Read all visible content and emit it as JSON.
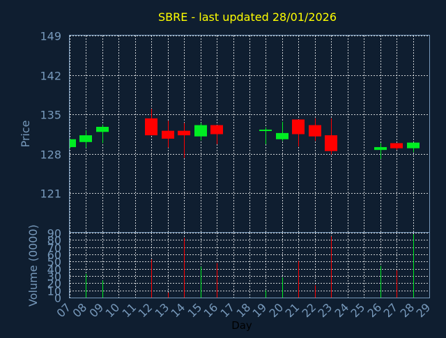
{
  "chart_data": {
    "type": "candlestick",
    "title": "SBRE - last updated 28/01/2026",
    "xlabel": "Day",
    "ylabel": "Price",
    "volume_label": "Volume (0000)",
    "grid": true,
    "price_ticks": [
      "149",
      "142",
      "135",
      "128",
      "121"
    ],
    "volume_ticks": [
      "90",
      "80",
      "70",
      "60",
      "50",
      "40",
      "30",
      "20",
      "10",
      "0"
    ],
    "day_labels": [
      "07",
      "08",
      "09",
      "10",
      "11",
      "12",
      "13",
      "14",
      "15",
      "16",
      "17",
      "18",
      "19",
      "20",
      "21",
      "22",
      "23",
      "24",
      "25",
      "26",
      "27",
      "28",
      "29"
    ],
    "ylim": [
      114,
      149
    ],
    "volume_lim": [
      0,
      90
    ],
    "colors": {
      "up": "#00ee22",
      "down": "#ff0000",
      "title": "#ffff00",
      "axis": "#7799bb",
      "grid": "#ffffff",
      "background": "#0f1e30"
    },
    "candles": [
      {
        "day": "07",
        "open": 129.2,
        "close": 130.6,
        "high": 130.6,
        "low": 129.0,
        "volume": 0
      },
      {
        "day": "08",
        "open": 130.1,
        "close": 131.3,
        "high": 132.2,
        "low": 129.1,
        "volume": 33
      },
      {
        "day": "09",
        "open": 131.9,
        "close": 132.8,
        "high": 133.2,
        "low": 129.9,
        "volume": 24
      },
      {
        "day": "12",
        "open": 134.3,
        "close": 131.3,
        "high": 136.0,
        "low": 131.3,
        "volume": 53
      },
      {
        "day": "13",
        "open": 132.1,
        "close": 130.7,
        "high": 133.9,
        "low": 129.1,
        "volume": 7
      },
      {
        "day": "14",
        "open": 132.1,
        "close": 131.3,
        "high": 133.5,
        "low": 127.3,
        "volume": 83
      },
      {
        "day": "15",
        "open": 131.1,
        "close": 133.1,
        "high": 133.5,
        "low": 130.4,
        "volume": 43
      },
      {
        "day": "16",
        "open": 133.1,
        "close": 131.5,
        "high": 133.1,
        "low": 129.7,
        "volume": 48
      },
      {
        "day": "19",
        "open": 132.1,
        "close": 132.3,
        "high": 132.7,
        "low": 129.7,
        "volume": 10
      },
      {
        "day": "20",
        "open": 130.6,
        "close": 131.7,
        "high": 133.7,
        "low": 130.3,
        "volume": 28
      },
      {
        "day": "21",
        "open": 134.1,
        "close": 131.5,
        "high": 134.1,
        "low": 129.3,
        "volume": 51
      },
      {
        "day": "22",
        "open": 133.1,
        "close": 131.1,
        "high": 134.3,
        "low": 130.3,
        "volume": 17
      },
      {
        "day": "23",
        "open": 131.3,
        "close": 128.5,
        "high": 134.3,
        "low": 127.9,
        "volume": 85
      },
      {
        "day": "26",
        "open": 128.7,
        "close": 129.2,
        "high": 129.9,
        "low": 127.1,
        "volume": 44
      },
      {
        "day": "27",
        "open": 129.9,
        "close": 129.0,
        "high": 129.9,
        "low": 128.7,
        "volume": 38
      },
      {
        "day": "28",
        "open": 129.0,
        "close": 130.0,
        "high": 130.0,
        "low": 128.3,
        "volume": 88
      }
    ]
  }
}
